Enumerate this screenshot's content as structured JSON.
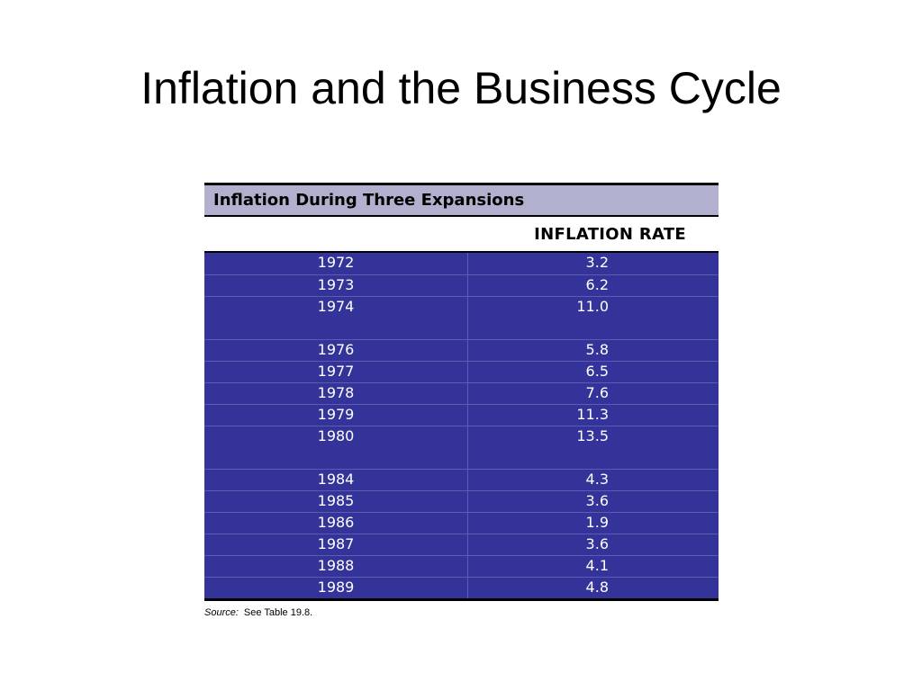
{
  "slide": {
    "title": "Inflation and the Business Cycle"
  },
  "table": {
    "caption": "Inflation During Three Expansions",
    "column_header": "INFLATION RATE",
    "rows": [
      {
        "year": "1972",
        "rate": "3.2"
      },
      {
        "year": "1973",
        "rate": "6.2"
      },
      {
        "year": "1974",
        "rate": "11.0",
        "group_end": true
      },
      {
        "year": "1976",
        "rate": "5.8"
      },
      {
        "year": "1977",
        "rate": "6.5"
      },
      {
        "year": "1978",
        "rate": "7.6"
      },
      {
        "year": "1979",
        "rate": "11.3"
      },
      {
        "year": "1980",
        "rate": "13.5",
        "group_end": true
      },
      {
        "year": "1984",
        "rate": "4.3"
      },
      {
        "year": "1985",
        "rate": "3.6"
      },
      {
        "year": "1986",
        "rate": "1.9"
      },
      {
        "year": "1987",
        "rate": "3.6"
      },
      {
        "year": "1988",
        "rate": "4.1"
      },
      {
        "year": "1989",
        "rate": "4.8"
      }
    ]
  },
  "source": {
    "label": "Source:",
    "text": "See Table 19.8."
  },
  "colors": {
    "caption_bg": "#b1b1cf",
    "body_bg": "#333399",
    "body_text": "#ffffff"
  }
}
